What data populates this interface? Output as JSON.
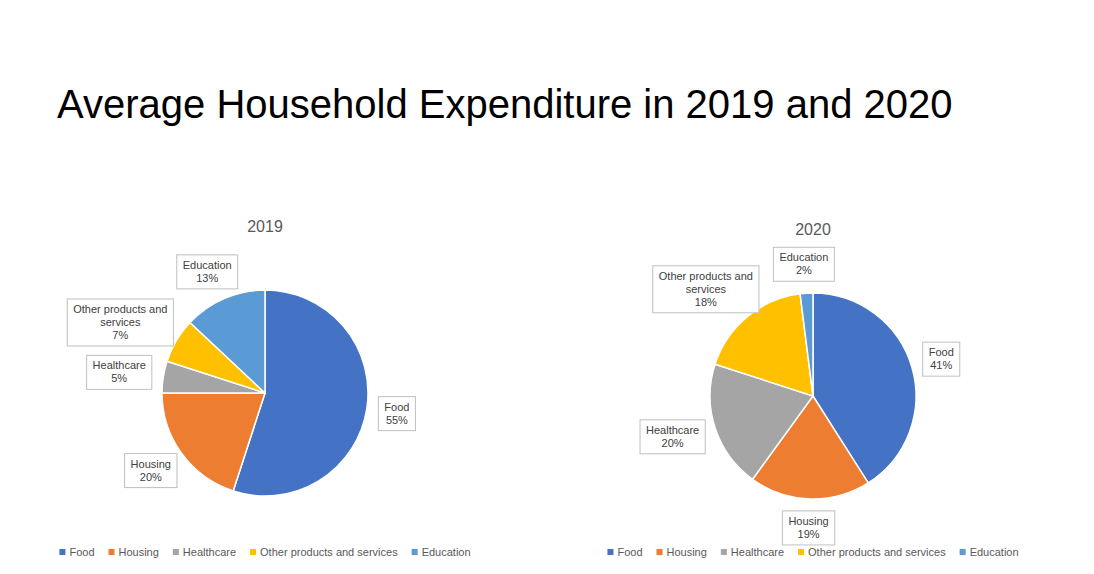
{
  "title": "Average Household Expenditure in 2019 and 2020",
  "chart_data": [
    {
      "type": "pie",
      "title": "2019",
      "categories": [
        "Food",
        "Housing",
        "Healthcare",
        "Other products and services",
        "Education"
      ],
      "values": [
        55,
        20,
        5,
        7,
        13
      ],
      "value_labels": [
        "55%",
        "20%",
        "5%",
        "7%",
        "13%"
      ],
      "colors": [
        "#4472c4",
        "#ed7d31",
        "#a5a5a5",
        "#ffc000",
        "#5b9bd5"
      ],
      "data_labels": true,
      "legend": "bottom"
    },
    {
      "type": "pie",
      "title": "2020",
      "categories": [
        "Food",
        "Housing",
        "Healthcare",
        "Other products and services",
        "Education"
      ],
      "values": [
        41,
        19,
        20,
        18,
        2
      ],
      "value_labels": [
        "41%",
        "19%",
        "20%",
        "18%",
        "2%"
      ],
      "colors": [
        "#4472c4",
        "#ed7d31",
        "#a5a5a5",
        "#ffc000",
        "#5b9bd5"
      ],
      "data_labels": true,
      "legend": "bottom"
    }
  ]
}
